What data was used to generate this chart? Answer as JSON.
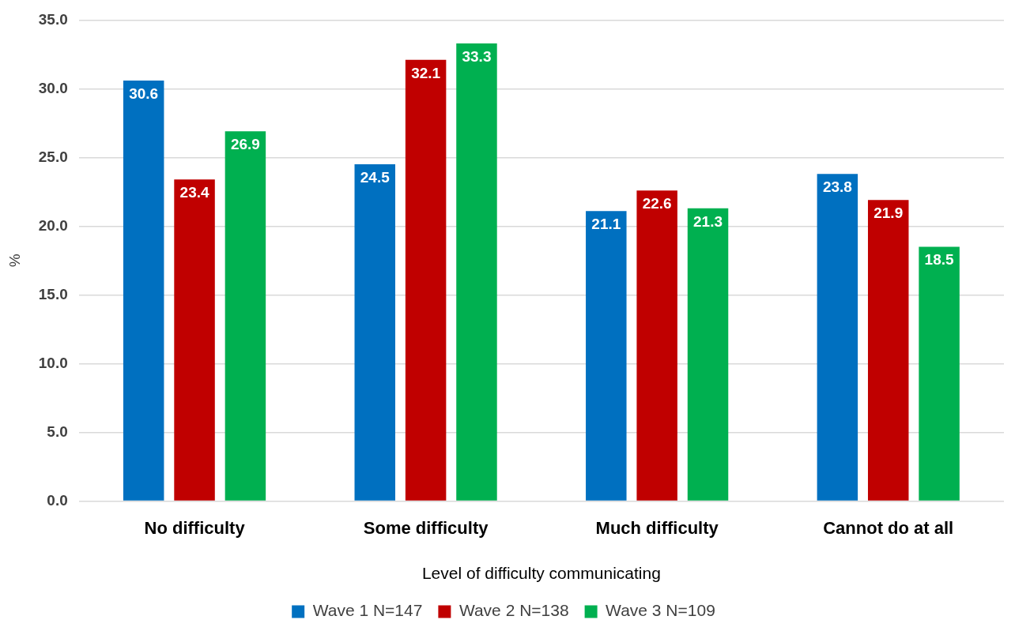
{
  "chart_data": {
    "type": "bar",
    "xlabel": "Level of difficulty communicating",
    "ylabel": "%",
    "categories": [
      "No difficulty",
      "Some difficulty",
      "Much difficulty",
      "Cannot do at all"
    ],
    "series": [
      {
        "name": "Wave 1 N=147",
        "color": "#0070c0",
        "values": [
          30.6,
          24.5,
          21.1,
          23.8
        ]
      },
      {
        "name": "Wave 2 N=138",
        "color": "#c00000",
        "values": [
          23.4,
          32.1,
          22.6,
          21.9
        ]
      },
      {
        "name": "Wave 3 N=109",
        "color": "#00b050",
        "values": [
          26.9,
          33.3,
          21.3,
          18.5
        ]
      }
    ],
    "ylim": [
      0,
      35
    ],
    "yticks": [
      {
        "value": 0,
        "label": "0.0"
      },
      {
        "value": 5,
        "label": "5.0"
      },
      {
        "value": 10,
        "label": "10.0"
      },
      {
        "value": 15,
        "label": "15.0"
      },
      {
        "value": 20,
        "label": "20.0"
      },
      {
        "value": 25,
        "label": "25.0"
      },
      {
        "value": 30,
        "label": "30.0"
      },
      {
        "value": 35,
        "label": "35.0"
      }
    ],
    "grid": "y",
    "legend": "bottom",
    "data_labels": true
  }
}
